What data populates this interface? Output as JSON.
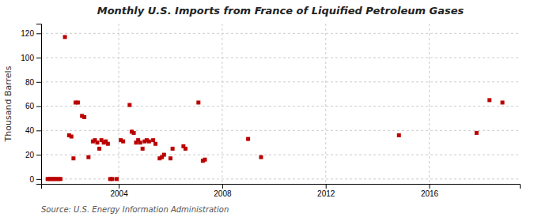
{
  "chart_data": {
    "type": "scatter",
    "title": "Monthly U.S. Imports from France of Liquified Petroleum Gases",
    "ylabel": "Thousand Barrels",
    "annotations": [
      "Source: U.S. Energy Information Administration"
    ],
    "color": "#bb0000",
    "marker": "square",
    "grid": true,
    "xlim": [
      2001.0,
      2019.5
    ],
    "xticks": [
      2004,
      2008,
      2012,
      2016
    ],
    "ylim": [
      -4,
      128
    ],
    "yticks": [
      0,
      20,
      40,
      60,
      80,
      100,
      120
    ],
    "x": [
      2001.25,
      2001.33,
      2001.42,
      2001.5,
      2001.58,
      2001.67,
      2001.75,
      2001.92,
      2002.08,
      2002.17,
      2002.25,
      2002.33,
      2002.42,
      2002.58,
      2002.67,
      2002.83,
      2003.0,
      2003.08,
      2003.17,
      2003.25,
      2003.33,
      2003.42,
      2003.5,
      2003.58,
      2003.67,
      2003.75,
      2003.92,
      2004.08,
      2004.17,
      2004.42,
      2004.5,
      2004.58,
      2004.67,
      2004.75,
      2004.83,
      2004.92,
      2005.0,
      2005.08,
      2005.17,
      2005.33,
      2005.42,
      2005.58,
      2005.67,
      2005.75,
      2006.0,
      2006.08,
      2006.5,
      2006.58,
      2007.08,
      2007.25,
      2007.33,
      2009.0,
      2009.5,
      2014.83,
      2017.83,
      2018.33,
      2018.83
    ],
    "values": [
      0,
      0,
      0,
      0,
      0,
      0,
      0,
      117,
      36,
      35,
      17,
      63,
      63,
      52,
      51,
      18,
      31,
      32,
      30,
      25,
      32,
      30,
      31,
      29,
      0,
      0,
      0,
      32,
      31,
      61,
      39,
      38,
      30,
      32,
      30,
      25,
      31,
      32,
      31,
      32,
      29,
      17,
      18,
      20,
      17,
      25,
      27,
      25,
      63,
      15,
      16,
      33,
      18,
      36,
      38,
      65,
      63
    ]
  }
}
